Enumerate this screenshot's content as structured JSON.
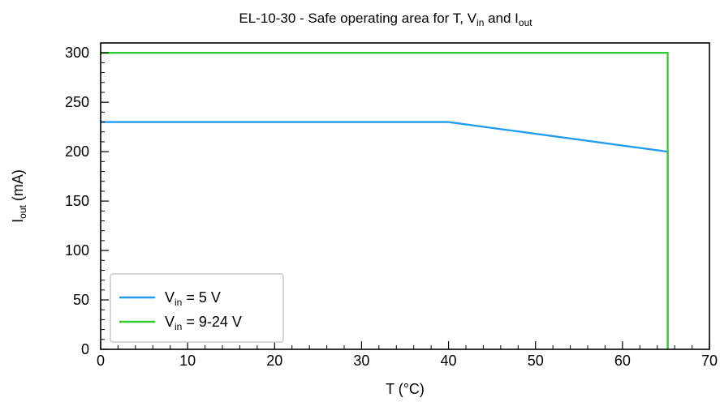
{
  "chart_data": {
    "type": "line",
    "title": {
      "prefix": "EL-10-30 - Safe operating area for T, V",
      "sub1": "in",
      "mid": " and I",
      "sub2": "out"
    },
    "xlabel": "T (°C)",
    "ylabel": {
      "main": "I",
      "sub": "out",
      "suffix": " (mA)"
    },
    "xlim": [
      0,
      70
    ],
    "ylim": [
      0,
      310
    ],
    "xticks": [
      0,
      10,
      20,
      30,
      40,
      50,
      60,
      70
    ],
    "yticks": [
      0,
      50,
      100,
      150,
      200,
      250,
      300
    ],
    "x_minor_step": 2,
    "y_minor_step": 10,
    "grid": false,
    "legend_position": "bottom-left",
    "series": [
      {
        "name": "Vin = 5 V",
        "legend": {
          "main": "V",
          "sub": "in",
          "suffix": " = 5 V"
        },
        "color": "#1f9cf0",
        "x": [
          0,
          40,
          65.2,
          65.2
        ],
        "y": [
          230,
          230,
          200,
          0
        ]
      },
      {
        "name": "Vin = 9-24 V",
        "legend": {
          "main": "V",
          "sub": "in",
          "suffix": " = 9-24 V"
        },
        "color": "#2ecc2e",
        "x": [
          0,
          65.2,
          65.2
        ],
        "y": [
          300,
          300,
          0
        ]
      }
    ]
  }
}
